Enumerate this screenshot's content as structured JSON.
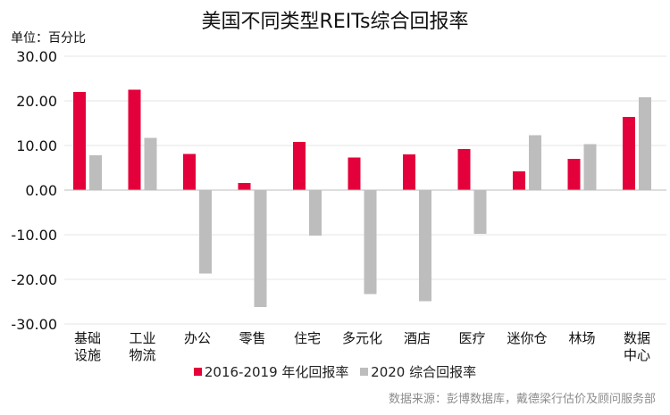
{
  "colors": {
    "series1": "#e4003a",
    "series2": "#bdbdbd",
    "grid": "#e6e6e6",
    "zero": "#bdbdbd"
  },
  "chart_data": {
    "type": "bar",
    "title": "美国不同类型REITs综合回报率",
    "unit_label": "单位：百分比",
    "categories": [
      "基础设施",
      "工业物流",
      "办公",
      "零售",
      "住宅",
      "多元化",
      "酒店",
      "医疗",
      "迷你仓",
      "林场",
      "数据中心"
    ],
    "category_lines": [
      [
        "基础",
        "设施"
      ],
      [
        "工业",
        "物流"
      ],
      [
        "办公"
      ],
      [
        "零售"
      ],
      [
        "住宅"
      ],
      [
        "多元化"
      ],
      [
        "酒店"
      ],
      [
        "医疗"
      ],
      [
        "迷你仓"
      ],
      [
        "林场"
      ],
      [
        "数据",
        "中心"
      ]
    ],
    "series": [
      {
        "name": "2016-2019 年化回报率",
        "values": [
          22.0,
          22.5,
          8.1,
          1.6,
          10.8,
          7.3,
          8.0,
          9.2,
          4.2,
          7.0,
          16.4
        ]
      },
      {
        "name": "2020 综合回报率",
        "values": [
          7.8,
          11.7,
          -18.7,
          -26.2,
          -10.2,
          -23.3,
          -24.9,
          -9.8,
          12.3,
          10.3,
          20.8
        ]
      }
    ],
    "ylim": [
      -30,
      30
    ],
    "yticks": [
      30,
      20,
      10,
      0,
      -10,
      -20,
      -30
    ],
    "ytick_labels": [
      "30.00",
      "20.00",
      "10.00",
      "0.00",
      "-10.00",
      "-20.00",
      "-30.00"
    ],
    "xlabel": "",
    "ylabel": "",
    "legend_position": "bottom",
    "source": "数据来源：彭博数据库，戴德梁行估价及顾问服务部"
  }
}
